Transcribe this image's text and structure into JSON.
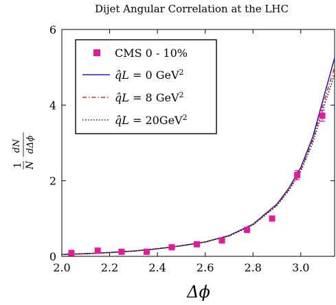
{
  "chart_data": {
    "type": "line",
    "title": "Dijet Angular Correlation at the LHC",
    "xlabel": "Δϕ",
    "ylabel": "1/N dN/dΔϕ",
    "xlim": [
      2.0,
      3.14159
    ],
    "ylim": [
      0,
      6
    ],
    "xticks": [
      "2.0",
      "2.2",
      "2.4",
      "2.6",
      "2.8",
      "3.0"
    ],
    "yticks": [
      "0",
      "2",
      "4",
      "6"
    ],
    "legend_position": "top-left",
    "series": [
      {
        "name": "CMS 0 - 10%",
        "kind": "markers",
        "color": "#e6199b",
        "x": [
          2.04,
          2.15,
          2.25,
          2.355,
          2.46,
          2.565,
          2.67,
          2.775,
          2.88,
          2.985,
          3.09
        ],
        "y": [
          0.09,
          0.15,
          0.12,
          0.12,
          0.24,
          0.32,
          0.42,
          0.7,
          1.0,
          2.15,
          3.72
        ],
        "yerr": [
          0,
          0,
          0,
          0,
          0,
          0,
          0,
          0,
          0,
          0.12,
          0.15
        ]
      },
      {
        "name": "q̂L = 0 GeV²",
        "legend_math": "q̂L",
        "legend_value": "= 0 GeV",
        "legend_sup": "2",
        "kind": "line",
        "style": "solid",
        "color": "#1f1fbf",
        "x": [
          2.0,
          2.1,
          2.2,
          2.3,
          2.4,
          2.5,
          2.6,
          2.7,
          2.8,
          2.9,
          2.95,
          3.0,
          3.05,
          3.1,
          3.14159
        ],
        "y": [
          0.05,
          0.07,
          0.1,
          0.14,
          0.2,
          0.28,
          0.38,
          0.55,
          0.85,
          1.38,
          1.8,
          2.35,
          3.15,
          4.3,
          5.25
        ]
      },
      {
        "name": "q̂L = 8 GeV²",
        "legend_math": "q̂L",
        "legend_value": "= 8 GeV",
        "legend_sup": "2",
        "kind": "line",
        "style": "dashdot",
        "color": "#e6281e",
        "x": [
          2.0,
          2.1,
          2.2,
          2.3,
          2.4,
          2.5,
          2.6,
          2.7,
          2.8,
          2.9,
          2.95,
          3.0,
          3.05,
          3.1,
          3.14159
        ],
        "y": [
          0.05,
          0.07,
          0.1,
          0.14,
          0.2,
          0.28,
          0.38,
          0.54,
          0.84,
          1.36,
          1.77,
          2.3,
          3.07,
          4.15,
          5.0
        ]
      },
      {
        "name": "q̂L = 20GeV²",
        "legend_math": "q̂L",
        "legend_value": "= 20GeV",
        "legend_sup": "2",
        "kind": "line",
        "style": "dotted",
        "color": "#111111",
        "x": [
          2.0,
          2.1,
          2.2,
          2.3,
          2.4,
          2.5,
          2.6,
          2.7,
          2.8,
          2.9,
          2.95,
          3.0,
          3.05,
          3.1,
          3.14159
        ],
        "y": [
          0.05,
          0.07,
          0.1,
          0.14,
          0.2,
          0.28,
          0.38,
          0.54,
          0.83,
          1.34,
          1.74,
          2.25,
          3.0,
          4.02,
          4.82
        ]
      }
    ]
  }
}
